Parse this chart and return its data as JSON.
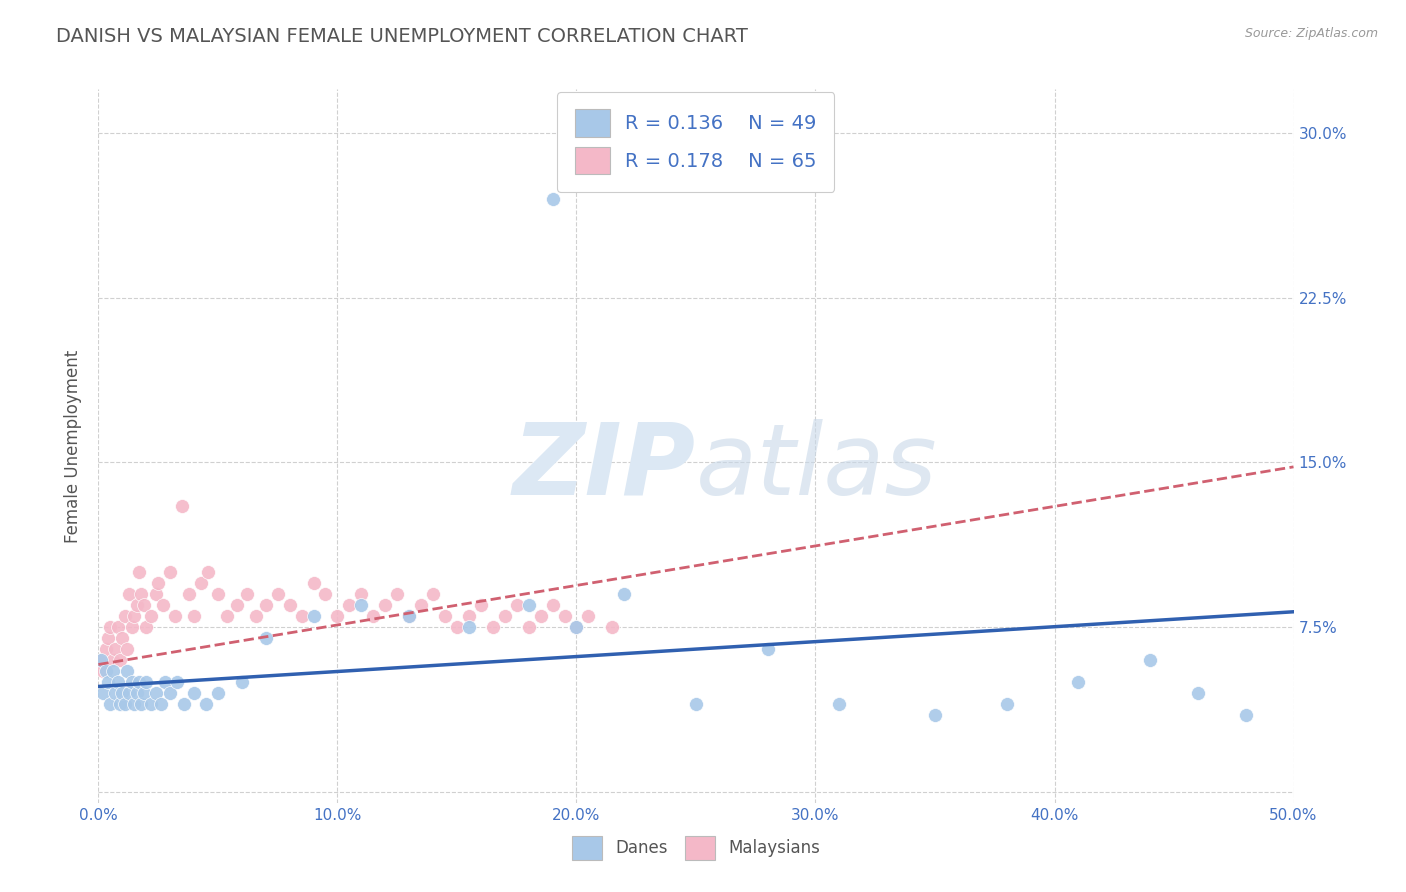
{
  "title": "DANISH VS MALAYSIAN FEMALE UNEMPLOYMENT CORRELATION CHART",
  "source_text": "Source: ZipAtlas.com",
  "ylabel": "Female Unemployment",
  "xlim": [
    0.0,
    0.5
  ],
  "ylim": [
    -0.005,
    0.32
  ],
  "xticks": [
    0.0,
    0.1,
    0.2,
    0.3,
    0.4,
    0.5
  ],
  "xtick_labels": [
    "0.0%",
    "10.0%",
    "20.0%",
    "30.0%",
    "40.0%",
    "50.0%"
  ],
  "yticks": [
    0.0,
    0.075,
    0.15,
    0.225,
    0.3
  ],
  "ytick_labels": [
    "",
    "7.5%",
    "15.0%",
    "22.5%",
    "30.0%"
  ],
  "background_color": "#ffffff",
  "grid_color": "#d0d0d0",
  "title_color": "#555555",
  "axis_label_color": "#555555",
  "tick_label_color": "#4472c4",
  "legend_r_danes": "R = 0.136",
  "legend_n_danes": "N = 49",
  "legend_r_malaysians": "R = 0.178",
  "legend_n_malaysians": "N = 65",
  "danes_color": "#a8c8e8",
  "malaysians_color": "#f4b8c8",
  "danes_line_color": "#3060b0",
  "malaysians_line_color": "#d06070",
  "watermark_color": "#dce8f4",
  "danes_x": [
    0.001,
    0.002,
    0.003,
    0.004,
    0.005,
    0.006,
    0.007,
    0.008,
    0.009,
    0.01,
    0.011,
    0.012,
    0.013,
    0.014,
    0.015,
    0.016,
    0.017,
    0.018,
    0.019,
    0.02,
    0.022,
    0.024,
    0.026,
    0.028,
    0.03,
    0.033,
    0.036,
    0.04,
    0.045,
    0.05,
    0.06,
    0.07,
    0.09,
    0.11,
    0.13,
    0.155,
    0.18,
    0.2,
    0.22,
    0.25,
    0.28,
    0.31,
    0.35,
    0.38,
    0.41,
    0.44,
    0.46,
    0.48,
    0.19
  ],
  "danes_y": [
    0.06,
    0.045,
    0.055,
    0.05,
    0.04,
    0.055,
    0.045,
    0.05,
    0.04,
    0.045,
    0.04,
    0.055,
    0.045,
    0.05,
    0.04,
    0.045,
    0.05,
    0.04,
    0.045,
    0.05,
    0.04,
    0.045,
    0.04,
    0.05,
    0.045,
    0.05,
    0.04,
    0.045,
    0.04,
    0.045,
    0.05,
    0.07,
    0.08,
    0.085,
    0.08,
    0.075,
    0.085,
    0.075,
    0.09,
    0.04,
    0.065,
    0.04,
    0.035,
    0.04,
    0.05,
    0.06,
    0.045,
    0.035,
    0.27
  ],
  "malaysians_x": [
    0.001,
    0.002,
    0.003,
    0.004,
    0.005,
    0.006,
    0.007,
    0.008,
    0.009,
    0.01,
    0.011,
    0.012,
    0.013,
    0.014,
    0.015,
    0.016,
    0.017,
    0.018,
    0.019,
    0.02,
    0.022,
    0.024,
    0.025,
    0.027,
    0.03,
    0.032,
    0.035,
    0.038,
    0.04,
    0.043,
    0.046,
    0.05,
    0.054,
    0.058,
    0.062,
    0.066,
    0.07,
    0.075,
    0.08,
    0.085,
    0.09,
    0.095,
    0.1,
    0.105,
    0.11,
    0.115,
    0.12,
    0.125,
    0.13,
    0.135,
    0.14,
    0.145,
    0.15,
    0.155,
    0.16,
    0.165,
    0.17,
    0.175,
    0.18,
    0.185,
    0.19,
    0.195,
    0.2,
    0.205,
    0.215
  ],
  "malaysians_y": [
    0.06,
    0.055,
    0.065,
    0.07,
    0.075,
    0.06,
    0.065,
    0.075,
    0.06,
    0.07,
    0.08,
    0.065,
    0.09,
    0.075,
    0.08,
    0.085,
    0.1,
    0.09,
    0.085,
    0.075,
    0.08,
    0.09,
    0.095,
    0.085,
    0.1,
    0.08,
    0.13,
    0.09,
    0.08,
    0.095,
    0.1,
    0.09,
    0.08,
    0.085,
    0.09,
    0.08,
    0.085,
    0.09,
    0.085,
    0.08,
    0.095,
    0.09,
    0.08,
    0.085,
    0.09,
    0.08,
    0.085,
    0.09,
    0.08,
    0.085,
    0.09,
    0.08,
    0.075,
    0.08,
    0.085,
    0.075,
    0.08,
    0.085,
    0.075,
    0.08,
    0.085,
    0.08,
    0.075,
    0.08,
    0.075
  ],
  "danes_trend_x": [
    0.0,
    0.5
  ],
  "danes_trend_y": [
    0.048,
    0.082
  ],
  "malaysians_trend_x": [
    0.0,
    0.5
  ],
  "malaysians_trend_y": [
    0.058,
    0.148
  ]
}
